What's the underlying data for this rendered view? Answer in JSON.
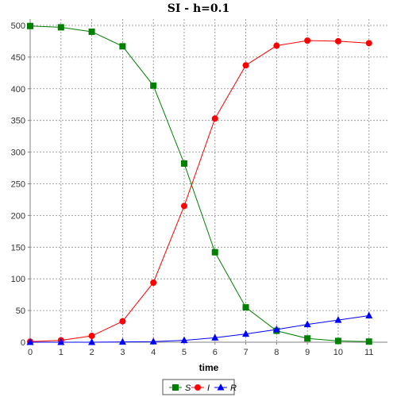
{
  "chart_data": {
    "type": "line",
    "title": "SI - h=0.1",
    "xlabel": "time",
    "ylabel": "",
    "xlim": [
      0,
      11.6
    ],
    "ylim": [
      0,
      510
    ],
    "xticks": [
      0,
      1,
      2,
      3,
      4,
      5,
      6,
      7,
      8,
      9,
      10,
      11
    ],
    "yticks": [
      0,
      50,
      100,
      150,
      200,
      250,
      300,
      350,
      400,
      450,
      500
    ],
    "grid": true,
    "legend_position": "bottom",
    "x": [
      0,
      1,
      2,
      3,
      4,
      5,
      6,
      7,
      8,
      9,
      10,
      11
    ],
    "series": [
      {
        "name": "S",
        "color": "#008000",
        "marker": "square",
        "values": [
          499,
          497,
          490,
          467,
          405,
          282,
          142,
          55,
          18,
          6,
          2,
          1
        ]
      },
      {
        "name": "I",
        "color": "#ff0000",
        "marker": "circle",
        "values": [
          1,
          3,
          10,
          33,
          94,
          215,
          353,
          437,
          468,
          476,
          475,
          472
        ]
      },
      {
        "name": "R",
        "color": "#0000ff",
        "marker": "triangle",
        "values": [
          0,
          0,
          0,
          0.5,
          1,
          3,
          7,
          13,
          20,
          28,
          35,
          42
        ]
      }
    ]
  }
}
